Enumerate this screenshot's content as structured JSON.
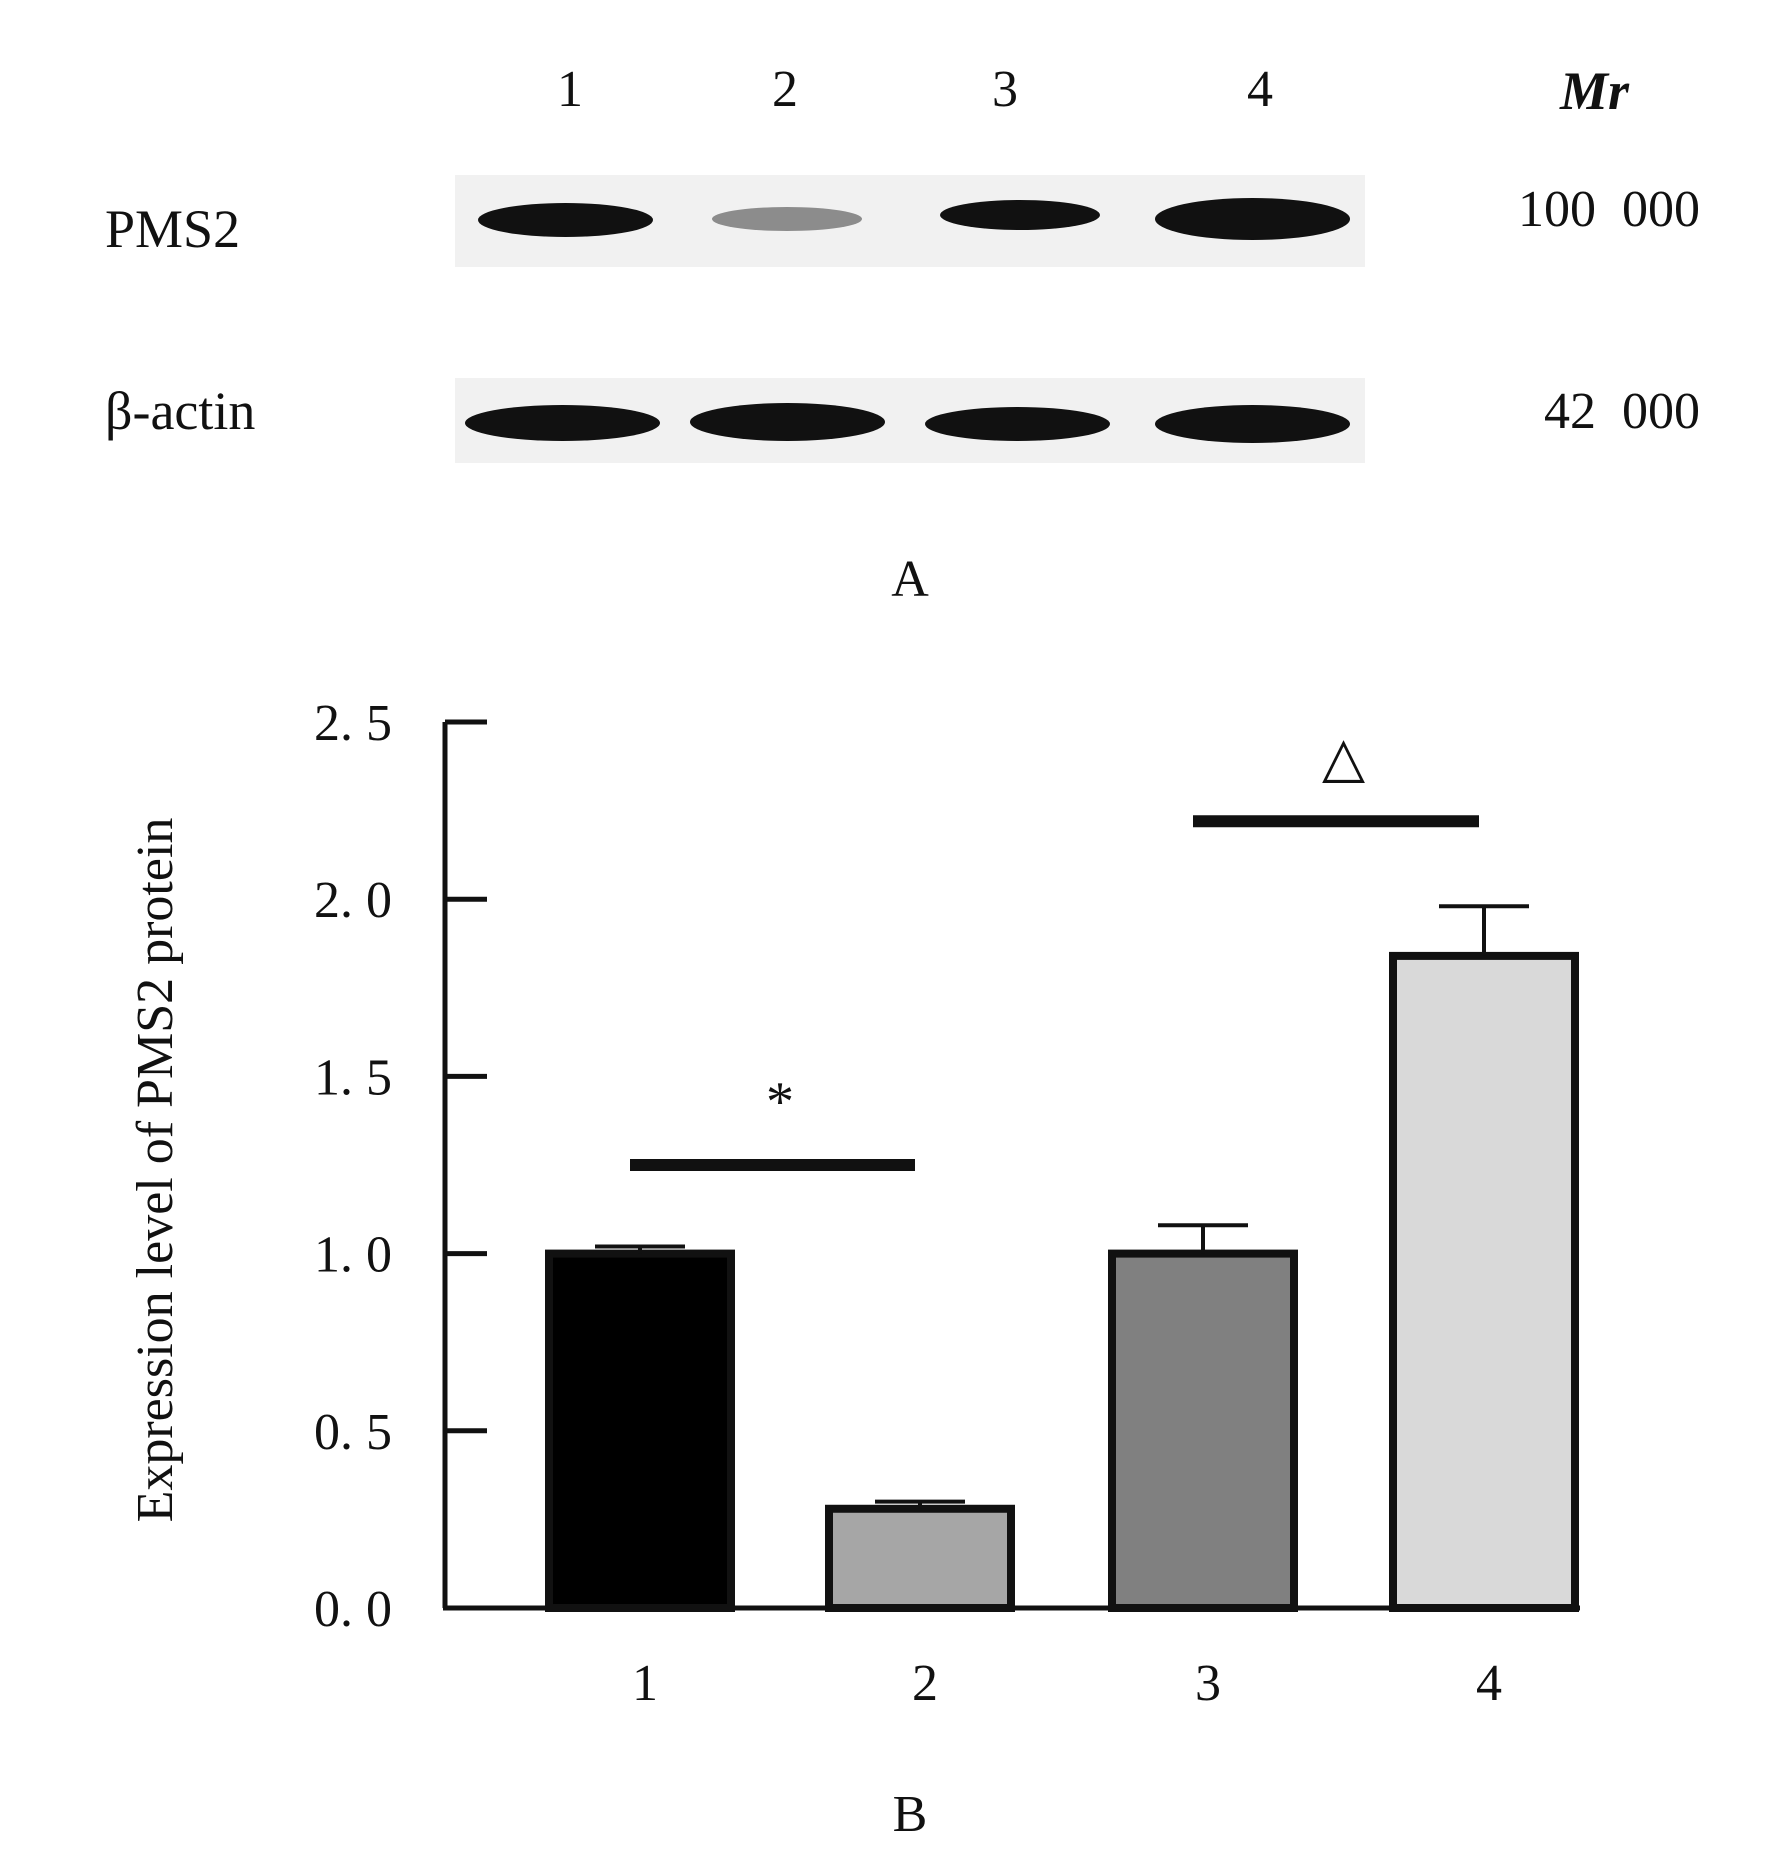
{
  "panel_a": {
    "lanes": [
      "1",
      "2",
      "3",
      "4"
    ],
    "mr_label": "Mr",
    "rows": [
      {
        "label": "PMS2",
        "mw": "100  000",
        "band_intensity": [
          0.9,
          0.35,
          0.9,
          1.0
        ]
      },
      {
        "label": "β-actin",
        "mw": "42  000",
        "band_intensity": [
          1.0,
          1.0,
          1.0,
          1.0
        ]
      }
    ],
    "panel_letter": "A"
  },
  "panel_b": {
    "panel_letter": "B",
    "chart_data": {
      "type": "bar",
      "categories": [
        "1",
        "2",
        "3",
        "4"
      ],
      "values": [
        1.0,
        0.28,
        1.0,
        1.84
      ],
      "errors": [
        0.02,
        0.02,
        0.08,
        0.14
      ],
      "bar_colors": [
        "#000000",
        "#a6a6a6",
        "#808080",
        "#d9d9d9"
      ],
      "ylabel": "Expression level of PMS2 protein",
      "xlabel": "",
      "ylim": [
        0,
        2.5
      ],
      "yticks": [
        "0. 0",
        "0. 5",
        "1. 0",
        "1. 5",
        "2. 0",
        "2. 5"
      ],
      "annotations": [
        {
          "symbol": "*",
          "from": 1,
          "to": 2,
          "y": 1.25
        },
        {
          "symbol": "△",
          "from": 3,
          "to": 4,
          "y": 2.22
        }
      ]
    }
  }
}
